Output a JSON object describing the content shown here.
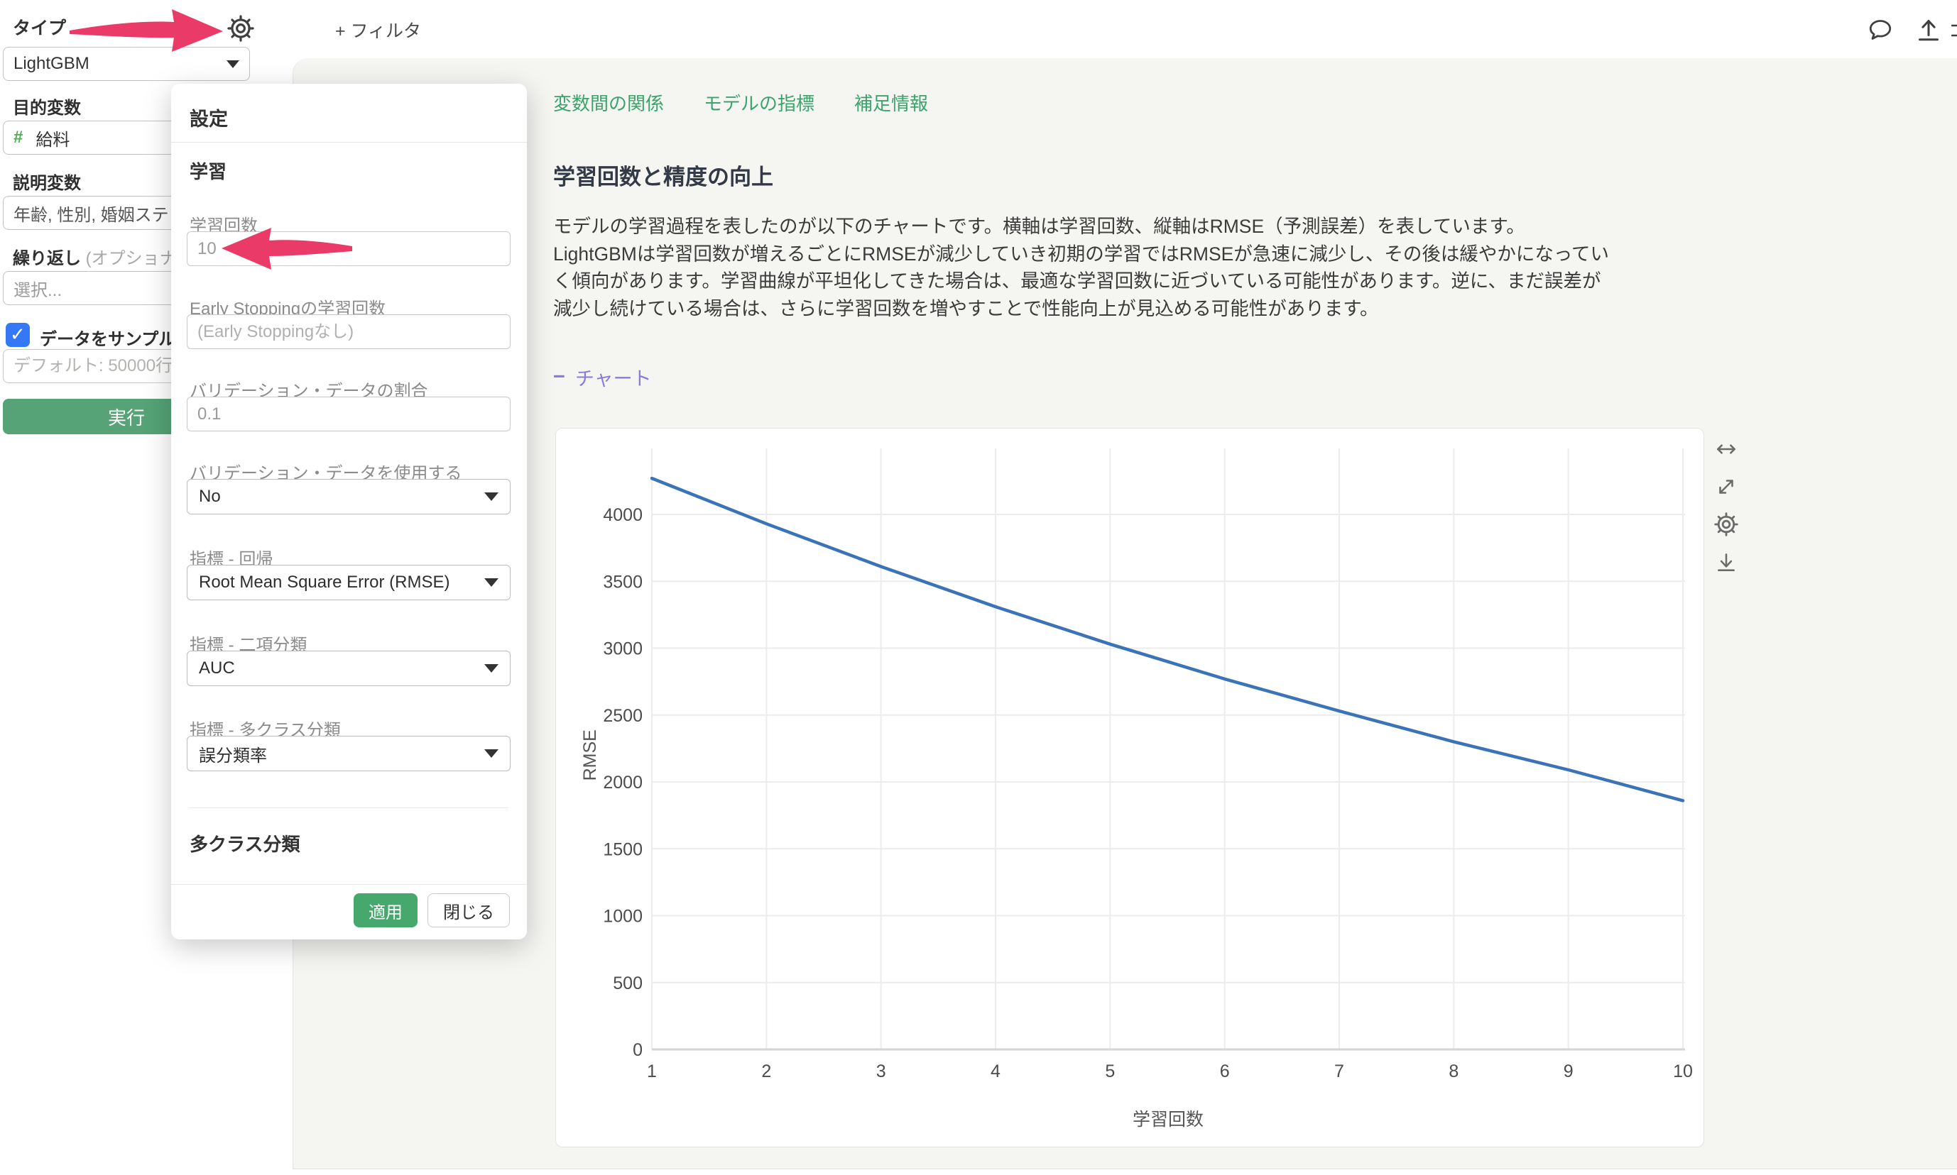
{
  "colors": {
    "accent_green": "#47a86d",
    "run_green": "#55a377",
    "tab_green": "#3da36c",
    "arrow_pink": "#ea3a67",
    "link_purple": "#8b79e0",
    "line_blue": "#3b73b9",
    "checkbox_blue": "#3478f6"
  },
  "icons": {
    "topbar": [
      "gear-icon",
      "filter-plus-icon",
      "comment-icon",
      "upload-icon"
    ],
    "chart_toolbar": [
      "resize-horizontal-icon",
      "expand-diagonal-icon",
      "gear-icon",
      "download-icon"
    ],
    "annotations": [
      "pink-arrow-to-gear",
      "pink-arrow-to-iterations-input"
    ]
  },
  "topbar": {
    "type_label": "タイプ",
    "filter_label": "+ フィルタ"
  },
  "sidebar": {
    "type_value": "LightGBM",
    "target_label": "目的変数",
    "target_type_icon": "#",
    "target_value": "給料",
    "predictor_label": "説明変数",
    "predictor_value": "年齢, 性別, 婚姻ステ",
    "repeat_label": "繰り返し",
    "repeat_optional_suffix": "(オプショナ",
    "repeat_placeholder": "選択...",
    "sample_checkbox_label": "データをサンプル",
    "sample_checked": true,
    "sample_placeholder": "デフォルト: 50000行",
    "run_label": "実行"
  },
  "dialog": {
    "title": "設定",
    "section_learning": "学習",
    "iterations_label": "学習回数",
    "iterations_value": "10",
    "early_stopping_label": "Early Stoppingの学習回数",
    "early_stopping_placeholder": "(Early Stoppingなし)",
    "validation_ratio_label": "バリデーション・データの割合",
    "validation_ratio_value": "0.1",
    "validation_use_label": "バリデーション・データを使用する",
    "validation_use_value": "No",
    "metric_regression_label": "指標 - 回帰",
    "metric_regression_value": "Root Mean Square Error (RMSE)",
    "metric_binary_label": "指標 - 二項分類",
    "metric_binary_value": "AUC",
    "metric_multiclass_label": "指標 - 多クラス分類",
    "metric_multiclass_value": "誤分類率",
    "section_multiclass": "多クラス分類",
    "apply_label": "適用",
    "close_label": "閉じる"
  },
  "main": {
    "tabs": [
      {
        "label": "変数間の関係"
      },
      {
        "label": "モデルの指標"
      },
      {
        "label": "補足情報"
      }
    ],
    "heading": "学習回数と精度の向上",
    "paragraph_lines": [
      "モデルの学習過程を表したのが以下のチャートです。横軸は学習回数、縦軸はRMSE（予測誤差）を表しています。",
      "LightGBMは学習回数が増えるごとにRMSEが減少していき初期の学習ではRMSEが急速に減少し、その後は緩やかになってい",
      "く傾向があります。学習曲線が平坦化してきた場合は、最適な学習回数に近づいている可能性があります。逆に、まだ誤差が",
      "減少し続けている場合は、さらに学習回数を増やすことで性能向上が見込める可能性があります。"
    ],
    "chart_link_dash": "−",
    "chart_link_label": "チャート"
  },
  "chart_data": {
    "type": "line",
    "title": "",
    "x": [
      1,
      2,
      3,
      4,
      5,
      6,
      7,
      8,
      9,
      10
    ],
    "series": [
      {
        "name": "RMSE",
        "values": [
          4270,
          3930,
          3610,
          3310,
          3030,
          2770,
          2530,
          2300,
          2090,
          1860
        ]
      }
    ],
    "xlabel": "学習回数",
    "ylabel": "RMSE",
    "xlim": [
      1,
      10
    ],
    "ylim": [
      0,
      4500
    ],
    "xticks": [
      1,
      2,
      3,
      4,
      5,
      6,
      7,
      8,
      9,
      10
    ],
    "yticks": [
      0,
      500,
      1000,
      1500,
      2000,
      2500,
      3000,
      3500,
      4000
    ],
    "grid": true,
    "legend": "none",
    "line_color": "#3b73b9"
  }
}
